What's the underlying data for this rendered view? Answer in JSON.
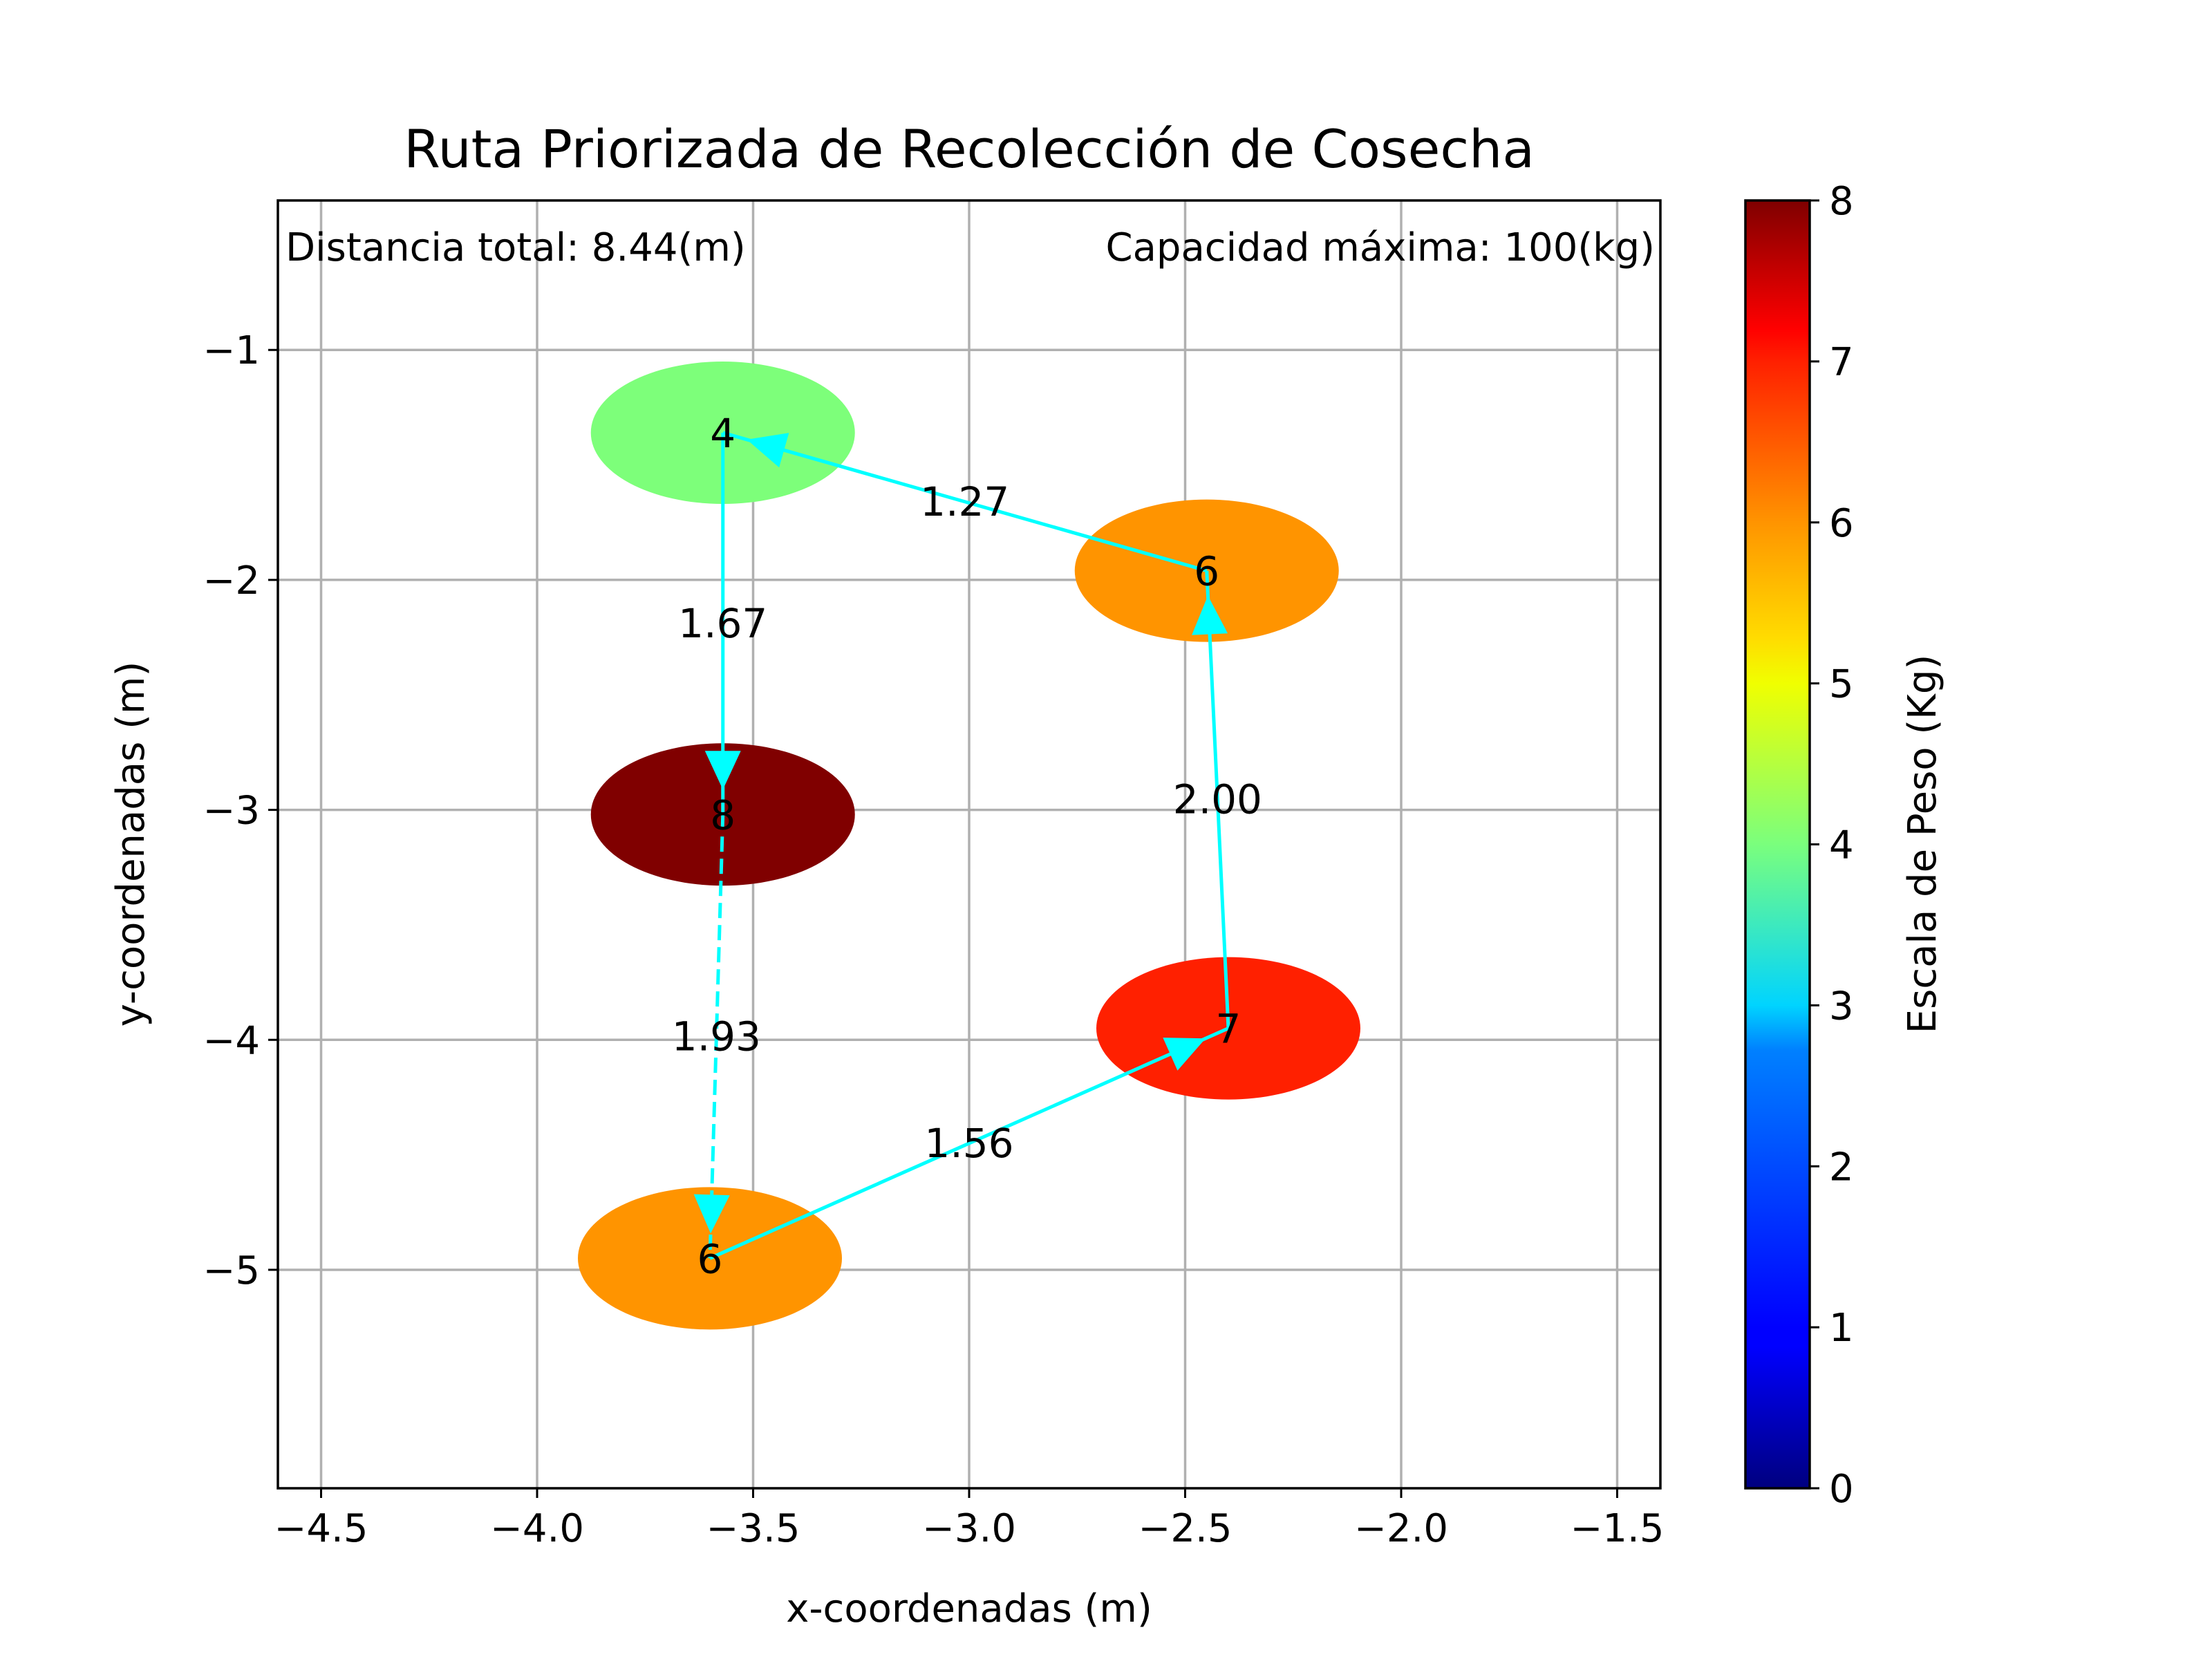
{
  "chart_data": {
    "type": "scatter",
    "title": "Ruta Priorizada de Recolección de Cosecha",
    "xlabel": "x-coordenadas (m)",
    "ylabel": "y-coordenadas (m)",
    "xlim": [
      -4.6,
      -1.4
    ],
    "ylim": [
      -5.95,
      -0.35
    ],
    "xticks": [
      -4.5,
      -4.0,
      -3.5,
      -3.0,
      -2.5,
      -2.0,
      -1.5
    ],
    "xtick_labels": [
      "−4.5",
      "−4.0",
      "−3.5",
      "−3.0",
      "−2.5",
      "−2.0",
      "−1.5"
    ],
    "yticks": [
      -1,
      -2,
      -3,
      -4,
      -5
    ],
    "ytick_labels": [
      "−1",
      "−2",
      "−3",
      "−4",
      "−5"
    ],
    "grid": true,
    "annotations": {
      "total_distance": "Distancia total: 8.44(m)",
      "max_capacity": "Capacidad máxima: 100(kg)"
    },
    "points": [
      {
        "id": "A",
        "x": -3.57,
        "y": -1.36,
        "weight": 4,
        "label": "4",
        "color": "#7dff7a"
      },
      {
        "id": "B",
        "x": -2.45,
        "y": -1.96,
        "weight": 6,
        "label": "6",
        "color": "#ff9400"
      },
      {
        "id": "C",
        "x": -3.57,
        "y": -3.02,
        "weight": 8,
        "label": "8",
        "color": "#800000"
      },
      {
        "id": "D",
        "x": -2.4,
        "y": -3.95,
        "weight": 7,
        "label": "7",
        "color": "#ff2000"
      },
      {
        "id": "E",
        "x": -3.6,
        "y": -4.95,
        "weight": 6,
        "label": "6",
        "color": "#ff9400"
      }
    ],
    "route": [
      {
        "from": "B",
        "to": "A",
        "distance": "1.27",
        "style": "solid"
      },
      {
        "from": "A",
        "to": "C",
        "distance": "1.67",
        "style": "solid"
      },
      {
        "from": "C",
        "to": "E",
        "distance": "1.93",
        "style": "dashed"
      },
      {
        "from": "E",
        "to": "D",
        "distance": "1.56",
        "style": "solid"
      },
      {
        "from": "D",
        "to": "B",
        "distance": "2.00",
        "style": "solid"
      }
    ],
    "edge_color": "#00ffff",
    "colorbar": {
      "label": "Escala de Peso (Kg)",
      "colormap": "jet",
      "min": 0,
      "max": 8,
      "ticks": [
        0,
        1,
        2,
        3,
        4,
        5,
        6,
        7,
        8
      ],
      "tick_labels": [
        "0",
        "1",
        "2",
        "3",
        "4",
        "5",
        "6",
        "7",
        "8"
      ]
    }
  }
}
